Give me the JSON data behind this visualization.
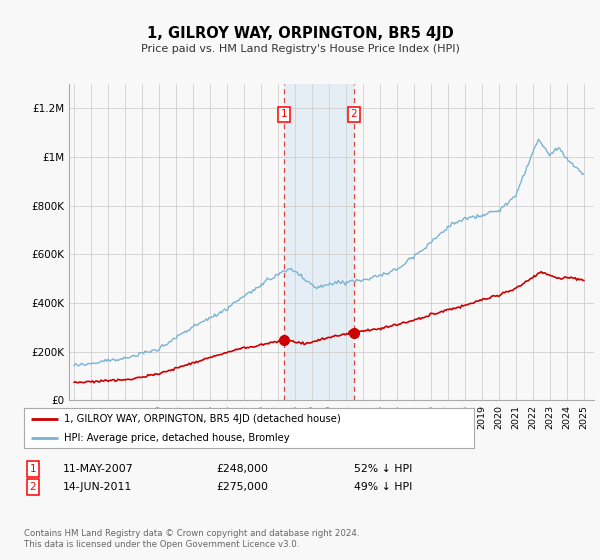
{
  "title": "1, GILROY WAY, ORPINGTON, BR5 4JD",
  "subtitle": "Price paid vs. HM Land Registry's House Price Index (HPI)",
  "hpi_color": "#7ab3d4",
  "price_color": "#cc0000",
  "background_color": "#f8f8f8",
  "grid_color": "#d0d0d0",
  "sale1_date": "11-MAY-2007",
  "sale1_price": 248000,
  "sale1_hpi_pct": "52% ↓ HPI",
  "sale2_date": "14-JUN-2011",
  "sale2_price": 275000,
  "sale2_hpi_pct": "49% ↓ HPI",
  "legend_label_price": "1, GILROY WAY, ORPINGTON, BR5 4JD (detached house)",
  "legend_label_hpi": "HPI: Average price, detached house, Bromley",
  "footnote": "Contains HM Land Registry data © Crown copyright and database right 2024.\nThis data is licensed under the Open Government Licence v3.0.",
  "ylim": [
    0,
    1300000
  ],
  "yticks": [
    0,
    200000,
    400000,
    600000,
    800000,
    1000000,
    1200000
  ],
  "ytick_labels": [
    "£0",
    "£200K",
    "£400K",
    "£600K",
    "£800K",
    "£1M",
    "£1.2M"
  ],
  "sale1_year": 2007.37,
  "sale2_year": 2011.46,
  "shade_color": "#c6dcf0",
  "vline_color": "#dd4444"
}
